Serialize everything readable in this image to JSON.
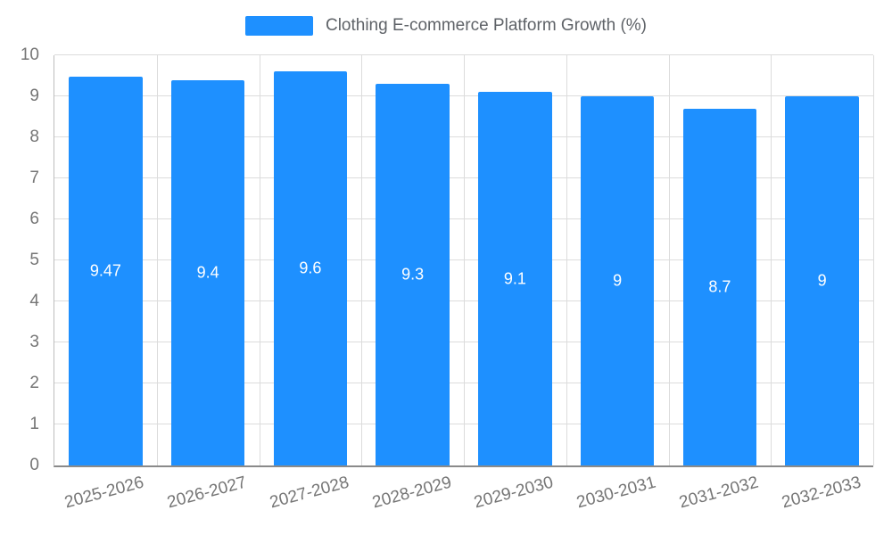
{
  "chart_data": {
    "type": "bar",
    "title": "Clothing E-commerce Platform Growth (%)",
    "categories": [
      "2025-2026",
      "2026-2027",
      "2027-2028",
      "2028-2029",
      "2029-2030",
      "2030-2031",
      "2031-2032",
      "2032-2033"
    ],
    "values": [
      9.47,
      9.4,
      9.6,
      9.3,
      9.1,
      9,
      8.7,
      9
    ],
    "value_labels": [
      "9.47",
      "9.4",
      "9.6",
      "9.3",
      "9.1",
      "9",
      "8.7",
      "9"
    ],
    "xlabel": "",
    "ylabel": "",
    "ylim": [
      0,
      10
    ],
    "ytick_step": 1,
    "grid": true,
    "legend_position": "top",
    "colors": {
      "bar": "#1E90FF",
      "bar_value_text": "#ffffff",
      "axis_text": "#757575",
      "gridline": "#dcdcdc",
      "legend_text": "#5f6368",
      "background": "#ffffff"
    }
  }
}
